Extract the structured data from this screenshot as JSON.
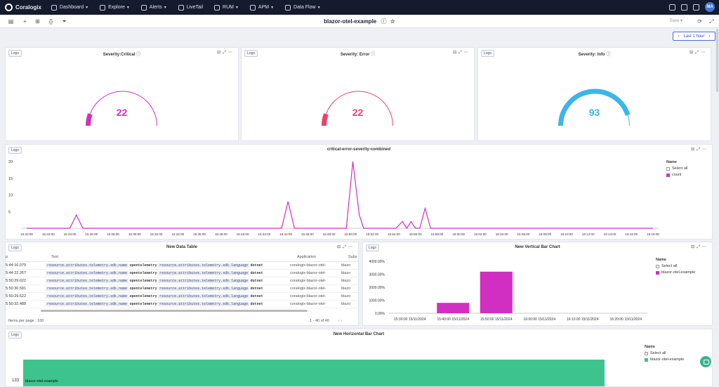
{
  "nav": {
    "brand": "Coralogix",
    "items": [
      {
        "label": "Dashboard",
        "caret": true
      },
      {
        "label": "Explore",
        "caret": true
      },
      {
        "label": "Alerts",
        "caret": true
      },
      {
        "label": "LiveTail",
        "caret": false
      },
      {
        "label": "RUM",
        "caret": true
      },
      {
        "label": "APM",
        "caret": true
      },
      {
        "label": "Data Flow",
        "caret": true
      }
    ],
    "avatar": "MA"
  },
  "toolbar": {
    "title": "blazor-otel-example",
    "save_label": "Save"
  },
  "time_range": "Last 1 hour",
  "gauges": [
    {
      "source": "Logs",
      "title": "Severity:Critical",
      "value": "22",
      "color": "#d12fc2",
      "fraction": 0.11
    },
    {
      "source": "Logs",
      "title": "Severity: Error",
      "value": "22",
      "color": "#e8436c",
      "fraction": 0.11
    },
    {
      "source": "Logs",
      "title": "Severity: Info",
      "value": "93",
      "color": "#3db4ea",
      "fraction": 0.9
    }
  ],
  "line_panel": {
    "source": "Logs",
    "title": "critical-error-severity-combined",
    "legend_title": "Name",
    "legend_select_all": "Select all",
    "legend_series": "count"
  },
  "chart_data": [
    {
      "type": "line",
      "title": "critical-error-severity-combined",
      "x": [
        "15:20:00",
        "15:22:00",
        "15:24:00",
        "15:26:00",
        "15:28:00",
        "15:30:00",
        "15:32:00",
        "15:34:00",
        "15:36:00",
        "15:38:00",
        "15:40:00",
        "15:42:00",
        "15:44:00",
        "15:46:00",
        "15:48:00",
        "15:50:00",
        "15:52:00",
        "15:54:00",
        "15:56:00",
        "15:58:00",
        "16:00:00",
        "16:02:00",
        "16:04:00",
        "16:06:00",
        "16:08:00",
        "16:10:00",
        "16:12:00",
        "16:14:00",
        "16:16:00",
        "16:18:00"
      ],
      "yticks": [
        20,
        15,
        10,
        5
      ],
      "ylim": [
        0,
        20
      ],
      "series": [
        {
          "name": "count",
          "color": "#d12fc2",
          "points": [
            [
              0,
              0
            ],
            [
              2.0,
              0
            ],
            [
              2.3,
              4
            ],
            [
              2.6,
              0
            ],
            [
              11.8,
              0
            ],
            [
              12.1,
              8
            ],
            [
              12.4,
              0
            ],
            [
              14.8,
              0
            ],
            [
              15.1,
              20
            ],
            [
              15.4,
              4
            ],
            [
              15.6,
              0
            ],
            [
              17.1,
              0
            ],
            [
              17.4,
              2
            ],
            [
              17.6,
              0
            ],
            [
              17.8,
              2
            ],
            [
              18.0,
              0
            ],
            [
              18.2,
              0
            ],
            [
              18.45,
              6
            ],
            [
              18.7,
              0
            ],
            [
              29,
              0
            ]
          ]
        }
      ]
    },
    {
      "type": "bar",
      "title": "New Vertical Bar Chart",
      "categories": [
        "15:30:00 15/11/2024",
        "15:40:00 15/11/2024",
        "15:50:00 15/11/2024",
        "16:00:00 15/11/2024",
        "16:10:00 15/11/2024",
        "16:20:00 15/11/2024"
      ],
      "values": [
        null,
        800,
        3200,
        null,
        null,
        null
      ],
      "yticks": [
        "4000.00%",
        "3000.00%",
        "2000.00%",
        "1000.00%",
        "0.00%"
      ],
      "ylim": [
        0,
        4000
      ],
      "series_name": "blazor-otel-example"
    },
    {
      "type": "bar",
      "title": "New Horizontal Bar Chart",
      "categories": [
        "blazor-otel-example"
      ],
      "values": [
        133
      ],
      "series_name": "blazor-otel-example"
    }
  ],
  "table_panel": {
    "source": "Logs",
    "title": "New Data Table",
    "columns": [
      "p",
      "Text",
      "Application",
      "Subs"
    ],
    "rows": [
      {
        "time": "5:44:16.079",
        "app": "coralogix-blazor-otel-",
        "sub": "blazo"
      },
      {
        "time": "5:44:22.267",
        "app": "coralogix-blazor-otel-",
        "sub": "blazo"
      },
      {
        "time": "5:50:29.622",
        "app": "coralogix-blazor-otel-",
        "sub": "blazo"
      },
      {
        "time": "5:50:30.591",
        "app": "coralogix-blazor-otel-",
        "sub": "blazo"
      },
      {
        "time": "5:50:29.622",
        "app": "coralogix-blazor-otel-",
        "sub": "blazo"
      },
      {
        "time": "5:50:32.488",
        "app": "coralogix-blazor-otel-",
        "sub": "blazo"
      }
    ],
    "text_tag1": "resource.attributes.telemetry.sdk.name",
    "text_val1": "opentelemetry",
    "text_tag2": "resource.attributes.telemetry.sdk.language",
    "text_val2": "dotnet",
    "items_per_page": "Items per page : 100",
    "pagination": "1 - 40 of 40"
  },
  "vbar_panel": {
    "source": "Logs",
    "title": "New Vertical Bar Chart",
    "legend_title": "Name",
    "legend_select_all": "Select all",
    "legend_series": "blazor-otel-example"
  },
  "hbar_panel": {
    "source": "Logs",
    "title": "New Horizontal Bar Chart",
    "legend_title": "Name",
    "legend_select_all": "Select all",
    "legend_series": "blazor-otel-example",
    "bar_label": "blazor-otel-example",
    "bar_value": "133"
  }
}
